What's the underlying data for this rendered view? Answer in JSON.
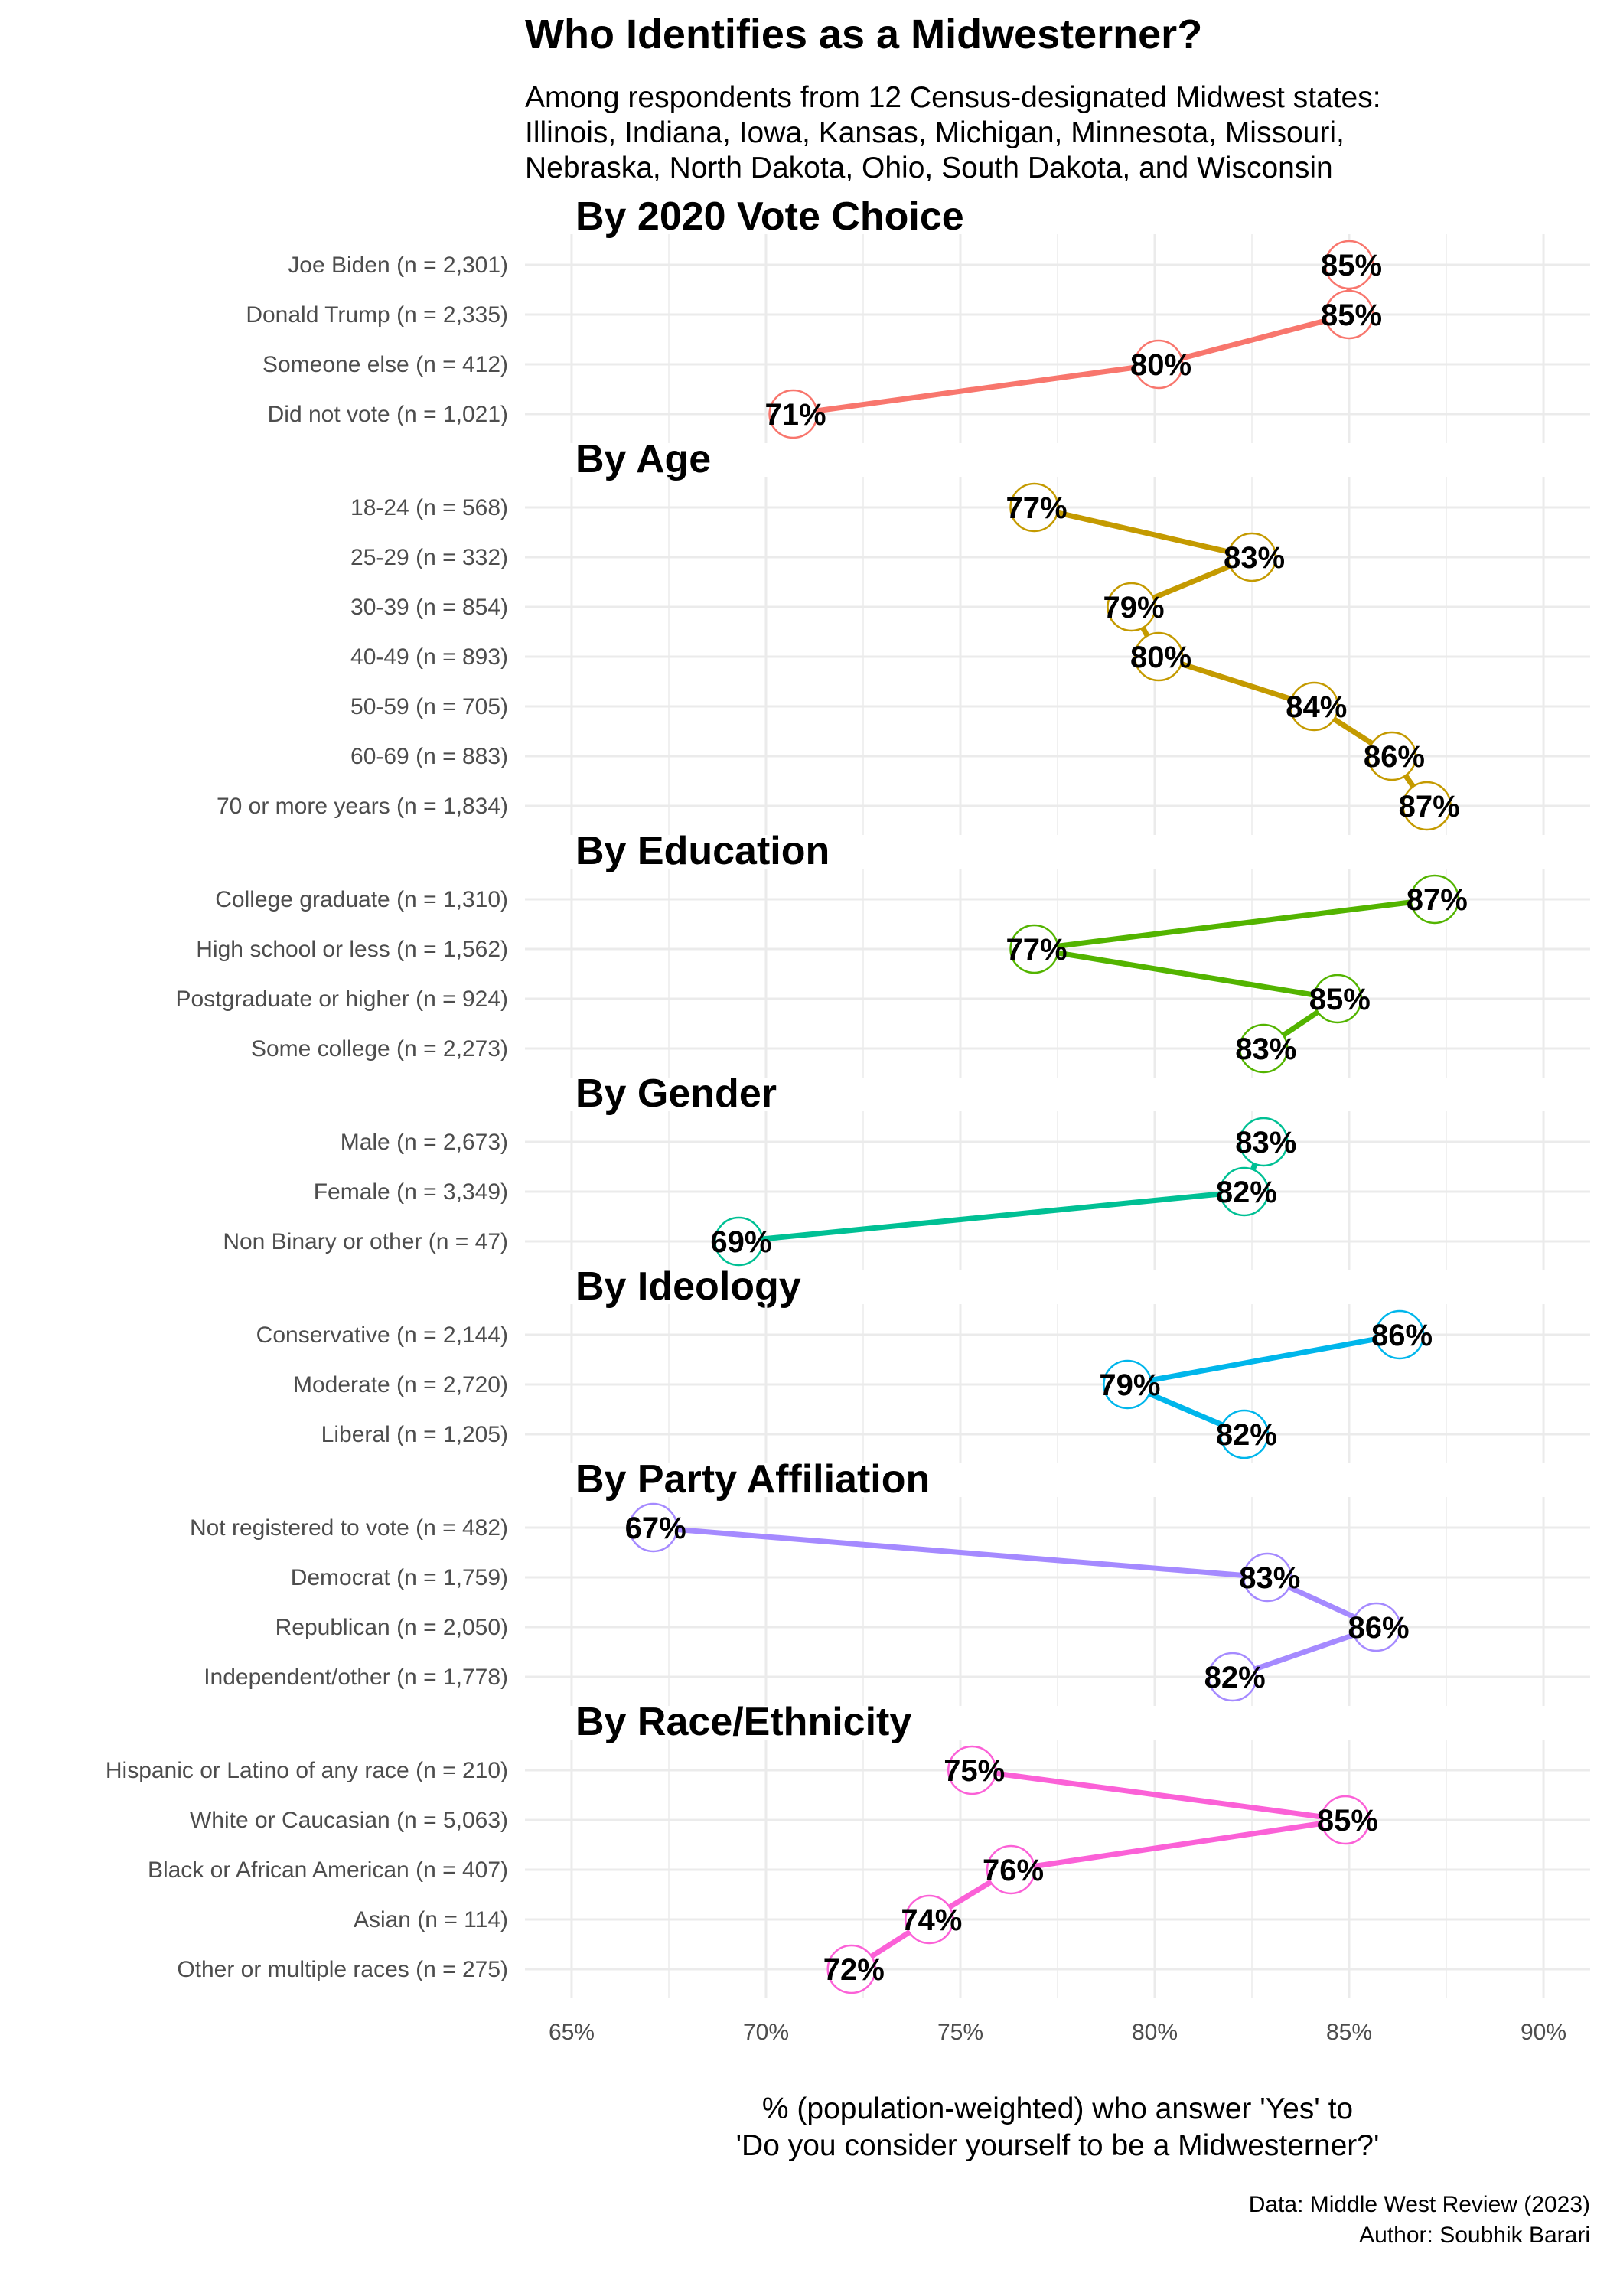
{
  "title": "Who Identifies as a Midwesterner?",
  "subtitle_lines": [
    "Among respondents from 12 Census-designated Midwest states:",
    "Illinois, Indiana, Iowa, Kansas, Michigan, Minnesota, Missouri,",
    "Nebraska, North Dakota, Ohio, South Dakota, and Wisconsin"
  ],
  "x_axis_title_lines": [
    "% (population-weighted) who answer 'Yes' to",
    "'Do you consider yourself to be a Midwesterner?'"
  ],
  "caption_lines": [
    "Data: Middle West Review (2023)",
    "Author: Soubhik Barari"
  ],
  "chart_data": {
    "type": "line",
    "xlim": [
      63.8,
      91.2
    ],
    "x_ticks": [
      65,
      70,
      75,
      80,
      85,
      90
    ],
    "x_tick_labels": [
      "65%",
      "70%",
      "75%",
      "80%",
      "85%",
      "90%"
    ],
    "grid": true,
    "panels": [
      {
        "title": "By 2020 Vote Choice",
        "color": "#F8766D",
        "rows": [
          {
            "label": "Joe Biden (n = 2,301)",
            "value": 85,
            "value_label": "85%"
          },
          {
            "label": "Donald Trump (n = 2,335)",
            "value": 85,
            "value_label": "85%"
          },
          {
            "label": "Someone else (n = 412)",
            "value": 80.1,
            "value_label": "80%"
          },
          {
            "label": "Did not vote (n = 1,021)",
            "value": 70.7,
            "value_label": "71%"
          }
        ]
      },
      {
        "title": "By Age",
        "color": "#C49A00",
        "rows": [
          {
            "label": "18-24 (n = 568)",
            "value": 76.9,
            "value_label": "77%"
          },
          {
            "label": "25-29 (n = 332)",
            "value": 82.5,
            "value_label": "83%"
          },
          {
            "label": "30-39 (n = 854)",
            "value": 79.4,
            "value_label": "79%"
          },
          {
            "label": "40-49 (n = 893)",
            "value": 80.1,
            "value_label": "80%"
          },
          {
            "label": "50-59 (n = 705)",
            "value": 84.1,
            "value_label": "84%"
          },
          {
            "label": "60-69 (n = 883)",
            "value": 86.1,
            "value_label": "86%"
          },
          {
            "label": "70 or more years (n = 1,834)",
            "value": 87.0,
            "value_label": "87%"
          }
        ]
      },
      {
        "title": "By Education",
        "color": "#53B400",
        "rows": [
          {
            "label": "College graduate (n = 1,310)",
            "value": 87.2,
            "value_label": "87%"
          },
          {
            "label": "High school or less (n = 1,562)",
            "value": 76.9,
            "value_label": "77%"
          },
          {
            "label": "Postgraduate or higher (n = 924)",
            "value": 84.7,
            "value_label": "85%"
          },
          {
            "label": "Some college (n = 2,273)",
            "value": 82.8,
            "value_label": "83%"
          }
        ]
      },
      {
        "title": "By Gender",
        "color": "#00C094",
        "rows": [
          {
            "label": "Male (n = 2,673)",
            "value": 82.8,
            "value_label": "83%"
          },
          {
            "label": "Female (n = 3,349)",
            "value": 82.3,
            "value_label": "82%"
          },
          {
            "label": "Non Binary or other (n = 47)",
            "value": 69.3,
            "value_label": "69%"
          }
        ]
      },
      {
        "title": "By Ideology",
        "color": "#00B6EB",
        "rows": [
          {
            "label": "Conservative (n = 2,144)",
            "value": 86.3,
            "value_label": "86%"
          },
          {
            "label": "Moderate (n = 2,720)",
            "value": 79.3,
            "value_label": "79%"
          },
          {
            "label": "Liberal (n = 1,205)",
            "value": 82.3,
            "value_label": "82%"
          }
        ]
      },
      {
        "title": "By Party Affiliation",
        "color": "#A58AFF",
        "rows": [
          {
            "label": "Not registered to vote  (n = 482)",
            "value": 67.1,
            "value_label": "67%"
          },
          {
            "label": "Democrat (n = 1,759)",
            "value": 82.9,
            "value_label": "83%"
          },
          {
            "label": "Republican (n = 2,050)",
            "value": 85.7,
            "value_label": "86%"
          },
          {
            "label": "Independent/other (n = 1,778)",
            "value": 82.0,
            "value_label": "82%"
          }
        ]
      },
      {
        "title": "By Race/Ethnicity",
        "color": "#FB61D7",
        "rows": [
          {
            "label": "Hispanic or Latino of any race (n = 210)",
            "value": 75.3,
            "value_label": "75%"
          },
          {
            "label": "White or Caucasian (n = 5,063)",
            "value": 84.9,
            "value_label": "85%"
          },
          {
            "label": "Black or African American (n = 407)",
            "value": 76.3,
            "value_label": "76%"
          },
          {
            "label": "Asian (n = 114)",
            "value": 74.2,
            "value_label": "74%"
          },
          {
            "label": "Other or multiple races (n = 275)",
            "value": 72.2,
            "value_label": "72%"
          }
        ]
      }
    ]
  }
}
